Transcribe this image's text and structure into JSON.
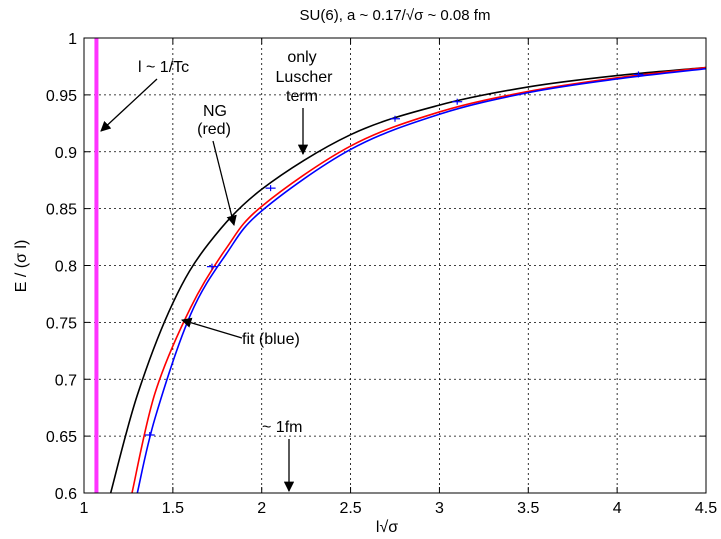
{
  "chart_data": {
    "type": "line",
    "title": "SU(6), a ~ 0.17/√σ ~ 0.08 fm",
    "xlabel": "l√σ",
    "ylabel": "E / (σ l)",
    "xlim": [
      1,
      4.5
    ],
    "ylim": [
      0.6,
      1
    ],
    "grid": true,
    "x_ticks": [
      "1",
      "1.5",
      "2",
      "2.5",
      "3",
      "3.5",
      "4",
      "4.5"
    ],
    "y_ticks": [
      "0.6",
      "0.65",
      "0.7",
      "0.75",
      "0.8",
      "0.85",
      "0.9",
      "0.95",
      "1"
    ],
    "series": [
      {
        "color": "#000000",
        "x": [
          1.15,
          1.3,
          1.5,
          1.7,
          2.0,
          2.5,
          3.0,
          3.5,
          4.0,
          4.5
        ],
        "values": [
          0.6,
          0.686,
          0.767,
          0.819,
          0.867,
          0.915,
          0.941,
          0.957,
          0.967,
          0.974
        ]
      },
      {
        "color": "#ff0000",
        "x": [
          1.27,
          1.4,
          1.6,
          1.8,
          2.0,
          2.5,
          3.0,
          3.5,
          4.0,
          4.5
        ],
        "values": [
          0.6,
          0.688,
          0.763,
          0.815,
          0.852,
          0.905,
          0.935,
          0.953,
          0.965,
          0.974
        ]
      },
      {
        "color": "#0000ff",
        "x": [
          1.3,
          1.4,
          1.6,
          1.8,
          2.0,
          2.5,
          3.0,
          3.5,
          4.0,
          4.5
        ],
        "values": [
          0.6,
          0.666,
          0.757,
          0.81,
          0.848,
          0.902,
          0.933,
          0.952,
          0.964,
          0.973
        ]
      },
      {
        "color": "#0000ff",
        "type": "scatter",
        "x": [
          1.37,
          1.72,
          2.05,
          2.75,
          3.1,
          4.12
        ],
        "values": [
          0.651,
          0.799,
          0.868,
          0.929,
          0.944,
          0.968
        ]
      }
    ],
    "vertical_line": {
      "x": 1.07,
      "color": "#ff33ff"
    },
    "annotations": {
      "tc": {
        "text": "l ~ 1/Tc"
      },
      "only": {
        "text": "only"
      },
      "luscher": {
        "text": "Luscher"
      },
      "term": {
        "text": "term"
      },
      "ng": {
        "text": "NG"
      },
      "red": {
        "text": "(red)"
      },
      "fit": {
        "text": "fit (blue)"
      },
      "fm": {
        "text": "~ 1fm"
      }
    }
  }
}
